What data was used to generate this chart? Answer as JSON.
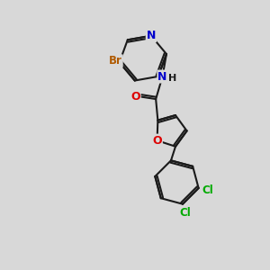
{
  "background_color": "#d8d8d8",
  "bond_color": "#1a1a1a",
  "atom_colors": {
    "Br": "#b05a00",
    "N": "#0000cc",
    "O": "#dd0000",
    "Cl": "#00aa00",
    "C": "#1a1a1a",
    "H": "#1a1a1a"
  },
  "figsize": [
    3.0,
    3.0
  ],
  "dpi": 100,
  "xlim": [
    0,
    10
  ],
  "ylim": [
    0,
    10
  ]
}
